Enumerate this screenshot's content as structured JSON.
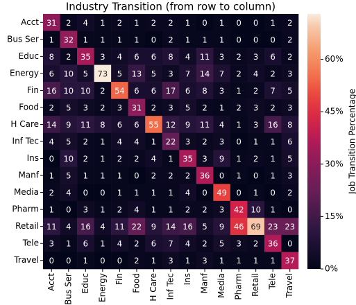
{
  "chart_data": {
    "type": "heatmap",
    "title": "Industry Transition (from row to column)",
    "x_categories": [
      "Acct",
      "Bus Ser",
      "Educ",
      "Energy",
      "Fin",
      "Food",
      "H Care",
      "Inf Tec",
      "Ins",
      "Manf",
      "Media",
      "Pharm",
      "Retail",
      "Tele",
      "Travel"
    ],
    "y_categories": [
      "Acct",
      "Bus Ser",
      "Educ",
      "Energy",
      "Fin",
      "Food",
      "H Care",
      "Inf Tec",
      "Ins",
      "Manf",
      "Media",
      "Pharm",
      "Retail",
      "Tele",
      "Travel"
    ],
    "values": [
      [
        31,
        2,
        4,
        1,
        2,
        1,
        2,
        2,
        1,
        0,
        1,
        0,
        0,
        1,
        2
      ],
      [
        1,
        32,
        1,
        1,
        1,
        1,
        0,
        2,
        1,
        1,
        1,
        0,
        0,
        0,
        2
      ],
      [
        8,
        2,
        35,
        3,
        4,
        6,
        6,
        8,
        4,
        11,
        3,
        2,
        3,
        6,
        2
      ],
      [
        6,
        10,
        5,
        73,
        5,
        13,
        5,
        3,
        7,
        14,
        7,
        2,
        4,
        2,
        3
      ],
      [
        16,
        10,
        10,
        2,
        54,
        6,
        6,
        17,
        6,
        8,
        3,
        1,
        2,
        7,
        5
      ],
      [
        2,
        5,
        3,
        2,
        3,
        31,
        2,
        3,
        5,
        2,
        1,
        2,
        3,
        2,
        3
      ],
      [
        14,
        9,
        11,
        8,
        6,
        6,
        55,
        12,
        9,
        11,
        4,
        1,
        3,
        16,
        8
      ],
      [
        4,
        5,
        2,
        1,
        4,
        4,
        1,
        22,
        3,
        2,
        3,
        0,
        1,
        1,
        6
      ],
      [
        0,
        10,
        2,
        1,
        2,
        2,
        4,
        1,
        35,
        3,
        9,
        1,
        2,
        1,
        5
      ],
      [
        1,
        5,
        1,
        1,
        1,
        0,
        2,
        2,
        2,
        36,
        0,
        1,
        0,
        1,
        3
      ],
      [
        2,
        4,
        0,
        0,
        1,
        1,
        1,
        1,
        4,
        0,
        49,
        0,
        1,
        0,
        2
      ],
      [
        1,
        0,
        3,
        1,
        2,
        4,
        1,
        1,
        2,
        2,
        3,
        42,
        10,
        1,
        0
      ],
      [
        11,
        4,
        16,
        4,
        11,
        22,
        9,
        14,
        16,
        5,
        9,
        46,
        69,
        23,
        23
      ],
      [
        3,
        1,
        6,
        1,
        4,
        2,
        6,
        7,
        4,
        2,
        5,
        3,
        2,
        36,
        0
      ],
      [
        0,
        0,
        1,
        0,
        0,
        2,
        1,
        3,
        1,
        3,
        1,
        1,
        1,
        1,
        37
      ]
    ],
    "colormap": "rocket",
    "colorbar_label": "Job Transition Percentage",
    "zlim": [
      0,
      73
    ],
    "zticks": [
      {
        "value": 0,
        "label": "0%"
      },
      {
        "value": 15,
        "label": "15%"
      },
      {
        "value": 30,
        "label": "30%"
      },
      {
        "value": 45,
        "label": "45%"
      },
      {
        "value": 60,
        "label": "60%"
      }
    ]
  }
}
